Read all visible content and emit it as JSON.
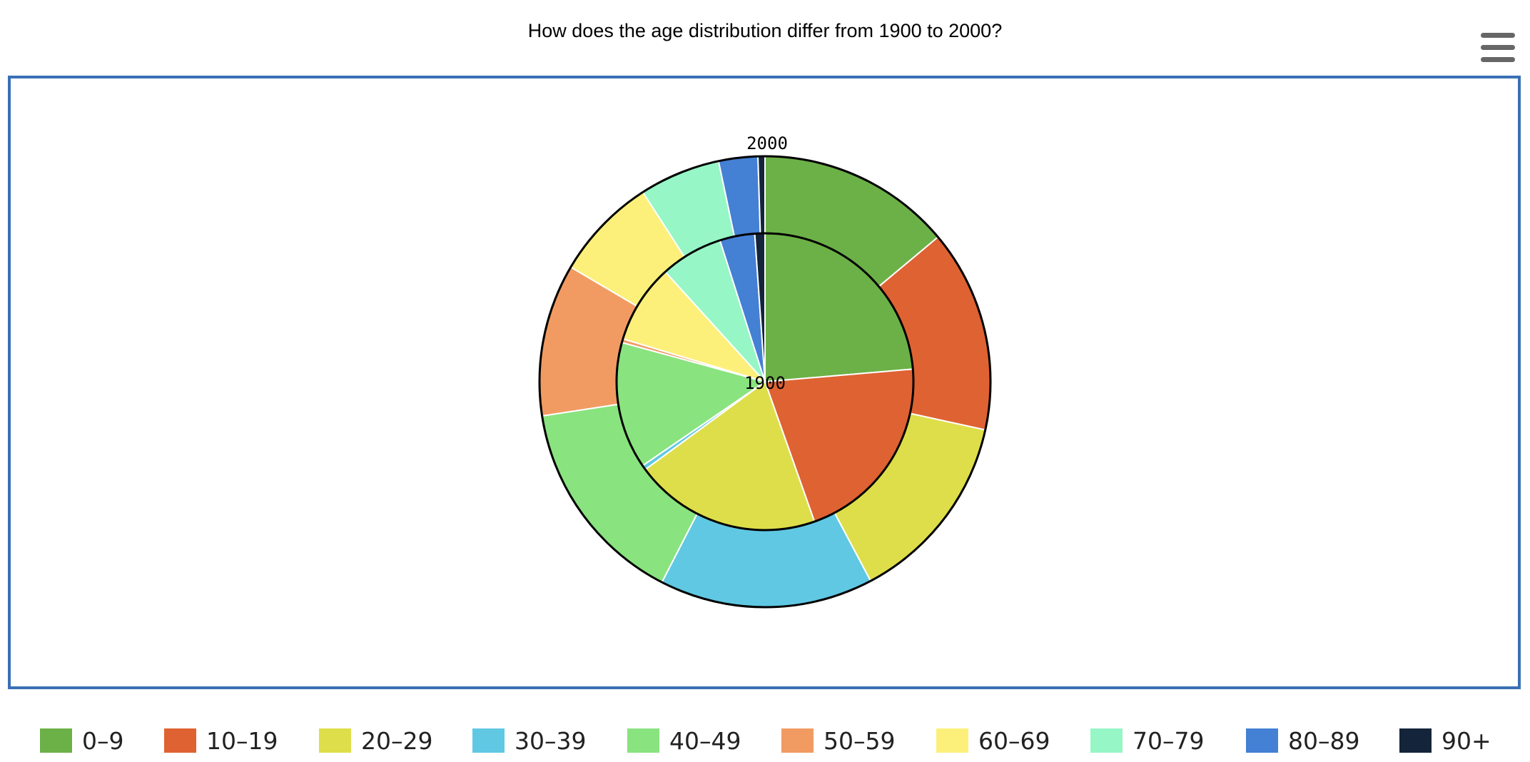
{
  "chart_data": {
    "type": "pie",
    "subtype": "nested-donut",
    "title": "How does the age distribution differ from 1900 to 2000?",
    "categories": [
      "0–9",
      "10–19",
      "20–29",
      "30–39",
      "40–49",
      "50–59",
      "60–69",
      "70–79",
      "80–89",
      "90+"
    ],
    "colors": [
      "#6cb147",
      "#df6232",
      "#dede4a",
      "#60c8e3",
      "#89e37f",
      "#f19b62",
      "#fcf07a",
      "#96f6c6",
      "#4480d4",
      "#14243a"
    ],
    "series": [
      {
        "name": "1900",
        "ring": "inner",
        "values": [
          23.6,
          20.9,
          20.3,
          0.5,
          13.8,
          0.4,
          8.6,
          6.8,
          3.8,
          1.1
        ]
      },
      {
        "name": "2000",
        "ring": "outer",
        "values": [
          13.9,
          14.5,
          13.8,
          15.3,
          15.0,
          10.9,
          7.4,
          5.8,
          2.8,
          0.5
        ]
      }
    ],
    "legend_position": "bottom"
  },
  "menu_icon": "hamburger-menu-icon"
}
